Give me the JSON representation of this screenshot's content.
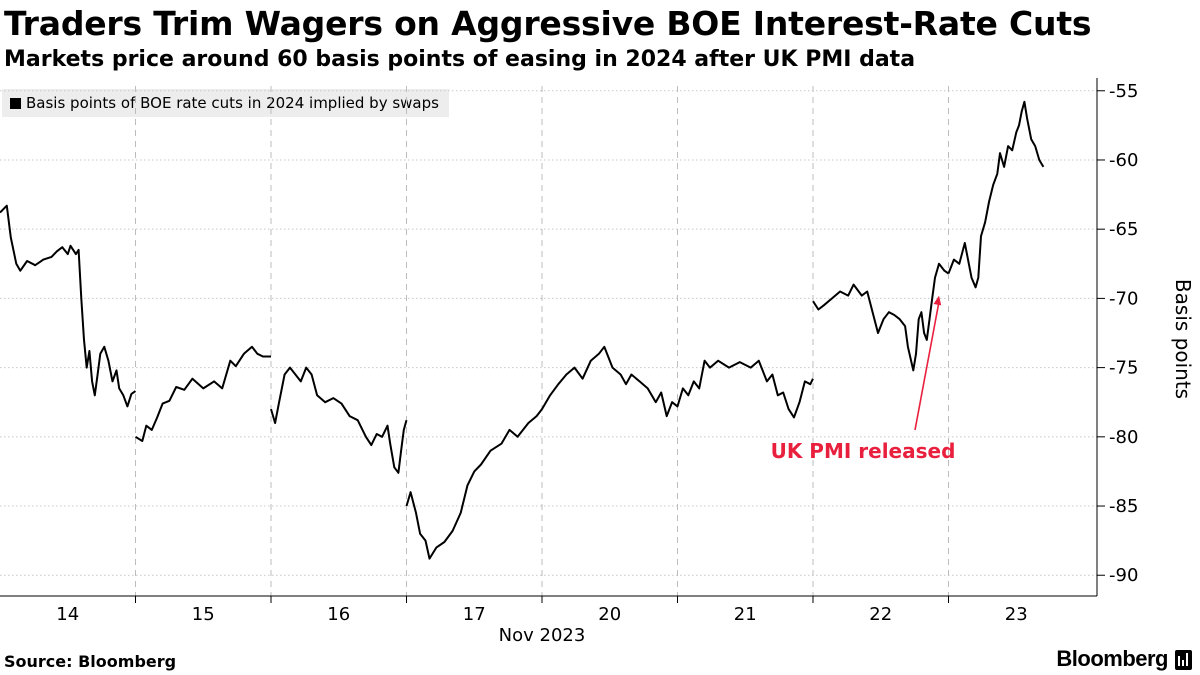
{
  "header": {
    "title": "Traders Trim Wagers on Aggressive BOE Interest-Rate Cuts",
    "subtitle": "Markets price around 60 basis points of easing in 2024 after UK PMI data"
  },
  "footer": {
    "source": "Source: Bloomberg",
    "brand": "Bloomberg"
  },
  "colors": {
    "line": "#000000",
    "annotation": "#e8203e",
    "legend_bg": "#ededed",
    "grid": "#c8c8c8"
  },
  "chart_data": {
    "type": "line",
    "legend": "Basis points of BOE rate cuts in 2024 implied by swaps",
    "legend_placement": "top-left",
    "ylabel": "Basis points",
    "xlabel": "Nov 2023",
    "ylim": [
      -91.5,
      -53.5
    ],
    "yticks": [
      -55,
      -60,
      -65,
      -70,
      -75,
      -80,
      -85,
      -90
    ],
    "y_axis_side": "right",
    "grid": true,
    "x_categories": [
      "14",
      "15",
      "16",
      "17",
      "20",
      "21",
      "22",
      "23"
    ],
    "annotation": {
      "text": "UK PMI released",
      "arrow_to": {
        "day": "22",
        "day_fraction": 0.93,
        "value": -69.8
      }
    },
    "series": [
      {
        "segments": [
          [
            [
              0.0,
              -63.8
            ],
            [
              0.05,
              -63.3
            ],
            [
              0.08,
              -65.6
            ],
            [
              0.12,
              -67.5
            ],
            [
              0.15,
              -68.0
            ],
            [
              0.2,
              -67.3
            ],
            [
              0.26,
              -67.6
            ],
            [
              0.32,
              -67.2
            ],
            [
              0.38,
              -67.0
            ],
            [
              0.42,
              -66.6
            ],
            [
              0.46,
              -66.3
            ],
            [
              0.5,
              -66.8
            ],
            [
              0.52,
              -66.2
            ],
            [
              0.56,
              -66.8
            ],
            [
              0.58,
              -66.5
            ],
            [
              0.6,
              -70.0
            ],
            [
              0.62,
              -73.0
            ],
            [
              0.64,
              -75.0
            ],
            [
              0.66,
              -73.8
            ],
            [
              0.68,
              -76.0
            ],
            [
              0.7,
              -77.0
            ],
            [
              0.72,
              -75.5
            ],
            [
              0.74,
              -74.0
            ],
            [
              0.77,
              -73.5
            ],
            [
              0.8,
              -74.5
            ],
            [
              0.83,
              -76.0
            ],
            [
              0.86,
              -75.2
            ],
            [
              0.88,
              -76.5
            ],
            [
              0.91,
              -77.0
            ],
            [
              0.94,
              -77.8
            ],
            [
              0.97,
              -76.9
            ],
            [
              1.0,
              -76.7
            ]
          ],
          [
            [
              1.0,
              -80.0
            ],
            [
              1.05,
              -80.3
            ],
            [
              1.08,
              -79.2
            ],
            [
              1.12,
              -79.5
            ],
            [
              1.16,
              -78.6
            ],
            [
              1.2,
              -77.6
            ],
            [
              1.25,
              -77.4
            ],
            [
              1.3,
              -76.4
            ],
            [
              1.36,
              -76.6
            ],
            [
              1.42,
              -75.8
            ],
            [
              1.5,
              -76.5
            ],
            [
              1.58,
              -76.0
            ],
            [
              1.64,
              -76.5
            ],
            [
              1.7,
              -74.5
            ],
            [
              1.74,
              -74.9
            ],
            [
              1.8,
              -74.0
            ],
            [
              1.86,
              -73.5
            ],
            [
              1.9,
              -74.0
            ],
            [
              1.94,
              -74.2
            ],
            [
              2.0,
              -74.2
            ]
          ],
          [
            [
              2.0,
              -78.0
            ],
            [
              2.03,
              -79.0
            ],
            [
              2.06,
              -77.5
            ],
            [
              2.1,
              -75.5
            ],
            [
              2.14,
              -75.0
            ],
            [
              2.18,
              -75.5
            ],
            [
              2.22,
              -76.0
            ],
            [
              2.26,
              -75.0
            ],
            [
              2.3,
              -75.5
            ],
            [
              2.34,
              -77.0
            ],
            [
              2.4,
              -77.5
            ],
            [
              2.46,
              -77.2
            ],
            [
              2.52,
              -77.6
            ],
            [
              2.58,
              -78.5
            ],
            [
              2.64,
              -78.8
            ],
            [
              2.7,
              -80.0
            ],
            [
              2.74,
              -80.6
            ],
            [
              2.78,
              -79.8
            ],
            [
              2.82,
              -80.0
            ],
            [
              2.86,
              -79.2
            ],
            [
              2.88,
              -80.5
            ],
            [
              2.91,
              -82.2
            ],
            [
              2.94,
              -82.6
            ],
            [
              2.96,
              -81.0
            ],
            [
              2.98,
              -79.5
            ],
            [
              3.0,
              -78.8
            ]
          ],
          [
            [
              3.0,
              -85.0
            ],
            [
              3.03,
              -84.0
            ],
            [
              3.07,
              -85.5
            ],
            [
              3.1,
              -87.0
            ],
            [
              3.14,
              -87.5
            ],
            [
              3.17,
              -88.8
            ],
            [
              3.22,
              -88.0
            ],
            [
              3.28,
              -87.6
            ],
            [
              3.34,
              -86.8
            ],
            [
              3.4,
              -85.5
            ],
            [
              3.45,
              -83.5
            ],
            [
              3.5,
              -82.5
            ],
            [
              3.55,
              -82.0
            ],
            [
              3.62,
              -81.0
            ],
            [
              3.7,
              -80.5
            ],
            [
              3.76,
              -79.5
            ],
            [
              3.82,
              -80.0
            ],
            [
              3.9,
              -79.0
            ],
            [
              3.96,
              -78.5
            ],
            [
              4.0,
              -78.0
            ],
            [
              4.06,
              -77.0
            ],
            [
              4.12,
              -76.2
            ],
            [
              4.18,
              -75.5
            ],
            [
              4.24,
              -75.0
            ],
            [
              4.3,
              -75.8
            ],
            [
              4.36,
              -74.5
            ],
            [
              4.42,
              -74.0
            ],
            [
              4.46,
              -73.5
            ],
            [
              4.52,
              -75.0
            ],
            [
              4.58,
              -75.5
            ],
            [
              4.62,
              -76.2
            ],
            [
              4.66,
              -75.5
            ],
            [
              4.72,
              -76.0
            ],
            [
              4.78,
              -76.5
            ],
            [
              4.84,
              -77.5
            ],
            [
              4.88,
              -76.8
            ],
            [
              4.92,
              -78.5
            ],
            [
              4.96,
              -77.5
            ],
            [
              5.0,
              -77.8
            ],
            [
              5.04,
              -76.5
            ],
            [
              5.08,
              -77.0
            ],
            [
              5.12,
              -76.0
            ],
            [
              5.16,
              -76.5
            ],
            [
              5.2,
              -74.5
            ],
            [
              5.24,
              -75.0
            ],
            [
              5.3,
              -74.5
            ],
            [
              5.38,
              -75.0
            ],
            [
              5.46,
              -74.6
            ],
            [
              5.54,
              -75.0
            ],
            [
              5.6,
              -74.5
            ],
            [
              5.66,
              -76.0
            ],
            [
              5.7,
              -75.5
            ],
            [
              5.74,
              -77.0
            ],
            [
              5.78,
              -76.8
            ],
            [
              5.82,
              -78.0
            ],
            [
              5.86,
              -78.6
            ],
            [
              5.9,
              -77.5
            ],
            [
              5.94,
              -76.0
            ],
            [
              5.98,
              -76.2
            ],
            [
              6.0,
              -75.8
            ]
          ],
          [
            [
              6.0,
              -70.2
            ],
            [
              6.04,
              -70.8
            ],
            [
              6.08,
              -70.5
            ],
            [
              6.14,
              -70.0
            ],
            [
              6.2,
              -69.5
            ],
            [
              6.26,
              -69.8
            ],
            [
              6.3,
              -69.0
            ],
            [
              6.36,
              -69.8
            ],
            [
              6.4,
              -69.5
            ],
            [
              6.44,
              -71.0
            ],
            [
              6.48,
              -72.5
            ],
            [
              6.52,
              -71.5
            ],
            [
              6.56,
              -71.0
            ],
            [
              6.6,
              -71.2
            ],
            [
              6.64,
              -71.5
            ],
            [
              6.68,
              -72.0
            ],
            [
              6.7,
              -73.5
            ],
            [
              6.74,
              -75.2
            ],
            [
              6.76,
              -74.0
            ],
            [
              6.78,
              -71.5
            ],
            [
              6.8,
              -71.0
            ],
            [
              6.82,
              -72.5
            ],
            [
              6.84,
              -73.0
            ],
            [
              6.86,
              -71.5
            ],
            [
              6.88,
              -70.0
            ],
            [
              6.9,
              -68.5
            ],
            [
              6.93,
              -67.5
            ],
            [
              6.97,
              -68.0
            ],
            [
              7.0,
              -68.2
            ]
          ],
          [
            [
              7.0,
              -68.2
            ],
            [
              7.04,
              -67.2
            ],
            [
              7.08,
              -67.5
            ],
            [
              7.12,
              -66.0
            ],
            [
              7.14,
              -67.0
            ],
            [
              7.17,
              -68.5
            ],
            [
              7.2,
              -69.2
            ],
            [
              7.22,
              -68.5
            ],
            [
              7.24,
              -65.5
            ],
            [
              7.27,
              -64.5
            ],
            [
              7.3,
              -63.0
            ],
            [
              7.33,
              -61.8
            ],
            [
              7.36,
              -61.0
            ],
            [
              7.38,
              -59.5
            ],
            [
              7.41,
              -60.5
            ],
            [
              7.44,
              -59.0
            ],
            [
              7.47,
              -59.3
            ],
            [
              7.5,
              -58.0
            ],
            [
              7.52,
              -57.5
            ],
            [
              7.54,
              -56.5
            ],
            [
              7.56,
              -55.8
            ],
            [
              7.58,
              -57.0
            ],
            [
              7.61,
              -58.5
            ],
            [
              7.64,
              -59.0
            ],
            [
              7.67,
              -60.0
            ],
            [
              7.7,
              -60.5
            ]
          ]
        ]
      }
    ]
  }
}
